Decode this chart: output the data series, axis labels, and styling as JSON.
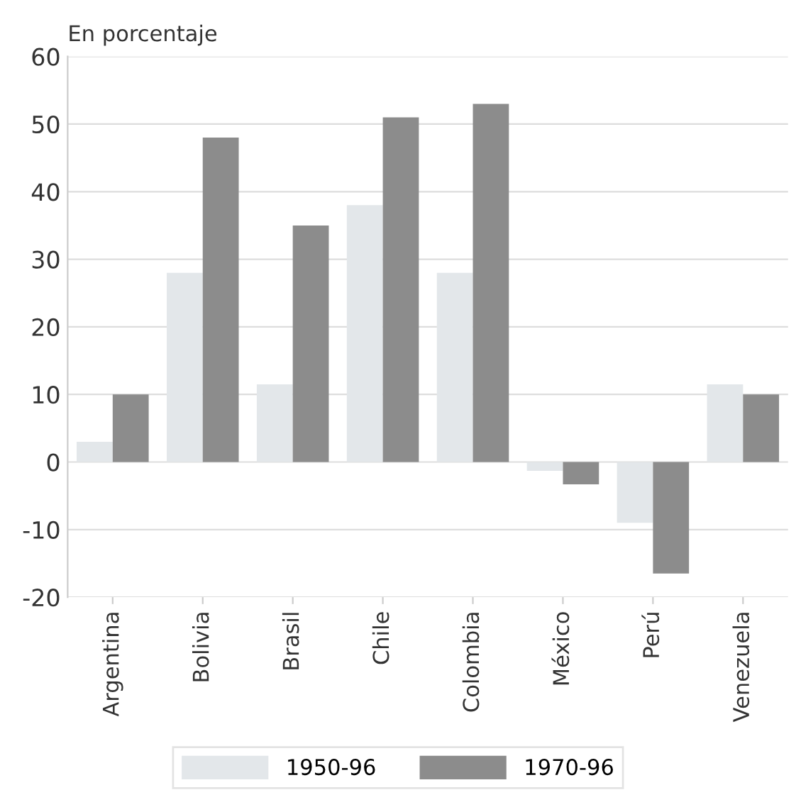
{
  "chart_data": {
    "type": "bar",
    "ylabel": "En porcentaje",
    "categories": [
      "Argentina",
      "Bolivia",
      "Brasil",
      "Chile",
      "Colombia",
      "México",
      "Perú",
      "Venezuela"
    ],
    "series": [
      {
        "name": "1950-96",
        "color": "#e3e7ea",
        "values": [
          3,
          28,
          11.5,
          38,
          28,
          -1.3,
          -9,
          11.5
        ]
      },
      {
        "name": "1970-96",
        "color": "#8c8c8c",
        "values": [
          10,
          48,
          35,
          51,
          53,
          -3.3,
          -16.5,
          10
        ]
      }
    ],
    "ylim": [
      -20,
      60
    ],
    "yticks": [
      -20,
      -10,
      0,
      10,
      20,
      30,
      40,
      50,
      60
    ],
    "grid": "y",
    "legend": "bottom"
  }
}
